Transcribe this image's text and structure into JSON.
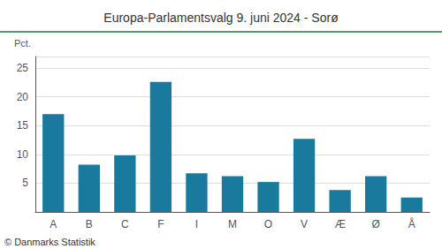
{
  "chart_data": {
    "type": "bar",
    "title": "Europa-Parlamentsvalg 9. juni 2024 - Sorø",
    "ylabel": "Pct.",
    "annotations": [
      "© Danmarks Statistik"
    ],
    "categories": [
      "A",
      "B",
      "C",
      "F",
      "I",
      "M",
      "O",
      "V",
      "Æ",
      "Ø",
      "Å"
    ],
    "values": [
      17.0,
      8.2,
      9.8,
      22.6,
      6.7,
      6.2,
      5.2,
      12.7,
      3.8,
      6.2,
      2.5
    ],
    "color": "#1a7a9e",
    "ylim": [
      0,
      27
    ],
    "yticks": [
      5,
      10,
      15,
      20,
      25
    ],
    "grid": true
  }
}
